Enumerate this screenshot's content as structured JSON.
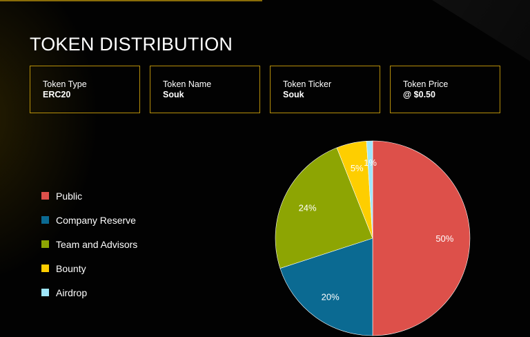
{
  "page": {
    "title": "TOKEN DISTRIBUTION"
  },
  "cards": [
    {
      "label": "Token Type",
      "value": "ERC20"
    },
    {
      "label": "Token Name",
      "value": "Souk"
    },
    {
      "label": "Token Ticker",
      "value": "Souk"
    },
    {
      "label": "Token Price",
      "value": "@ $0.50"
    }
  ],
  "colors": {
    "accent": "#b8900a"
  },
  "chart_data": {
    "type": "pie",
    "categories": [
      "Public",
      "Company Reserve",
      "Team and Advisors",
      "Bounty",
      "Airdrop"
    ],
    "values": [
      50,
      20,
      24,
      5,
      1
    ],
    "data_labels": [
      "50%",
      "20%",
      "24%",
      "5%",
      "1%"
    ],
    "colors": [
      "#dd504a",
      "#0b6a92",
      "#8da503",
      "#fece00",
      "#9fe6fb"
    ],
    "legend": "left"
  }
}
